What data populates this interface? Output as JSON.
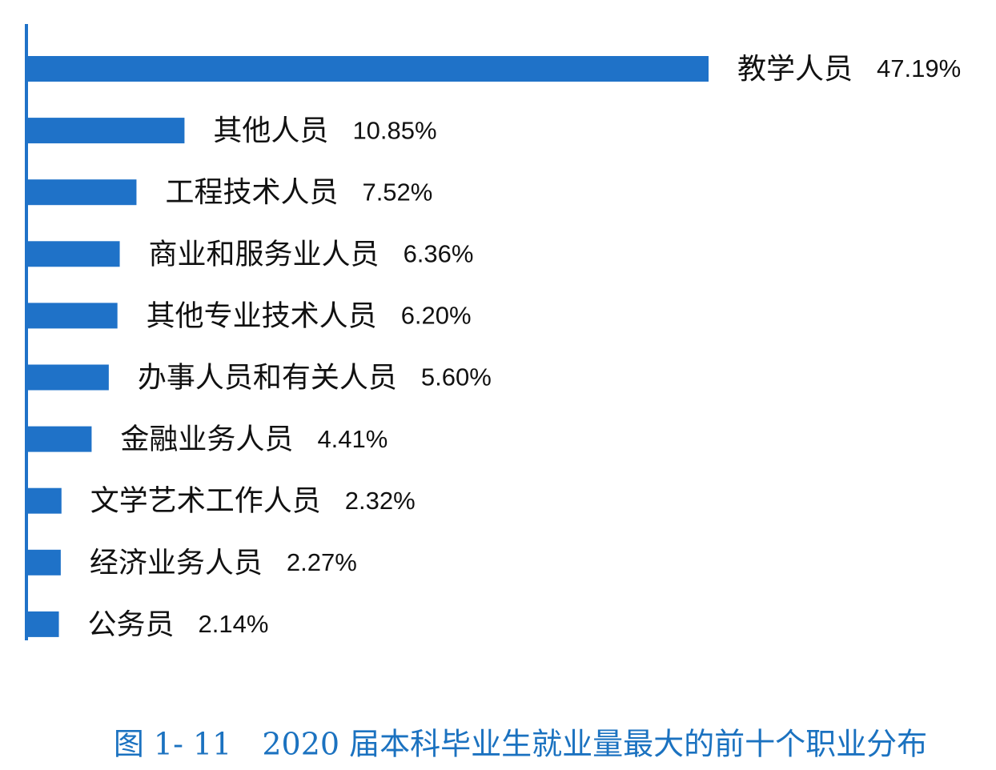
{
  "chart_data": {
    "type": "bar",
    "orientation": "horizontal",
    "title": "图 1- 11　2020 届本科毕业生就业量最大的前十个职业分布",
    "categories": [
      "教学人员",
      "其他人员",
      "工程技术人员",
      "商业和服务业人员",
      "其他专业技术人员",
      "办事人员和有关人员",
      "金融业务人员",
      "文学艺术工作人员",
      "经济业务人员",
      "公务员"
    ],
    "values": [
      47.19,
      10.85,
      7.52,
      6.36,
      6.2,
      5.6,
      4.41,
      2.32,
      2.27,
      2.14
    ],
    "value_labels": [
      "47.19%",
      "10.85%",
      "7.52%",
      "6.36%",
      "6.20%",
      "5.60%",
      "4.41%",
      "2.32%",
      "2.27%",
      "2.14%"
    ],
    "color": "#1f72c8"
  }
}
